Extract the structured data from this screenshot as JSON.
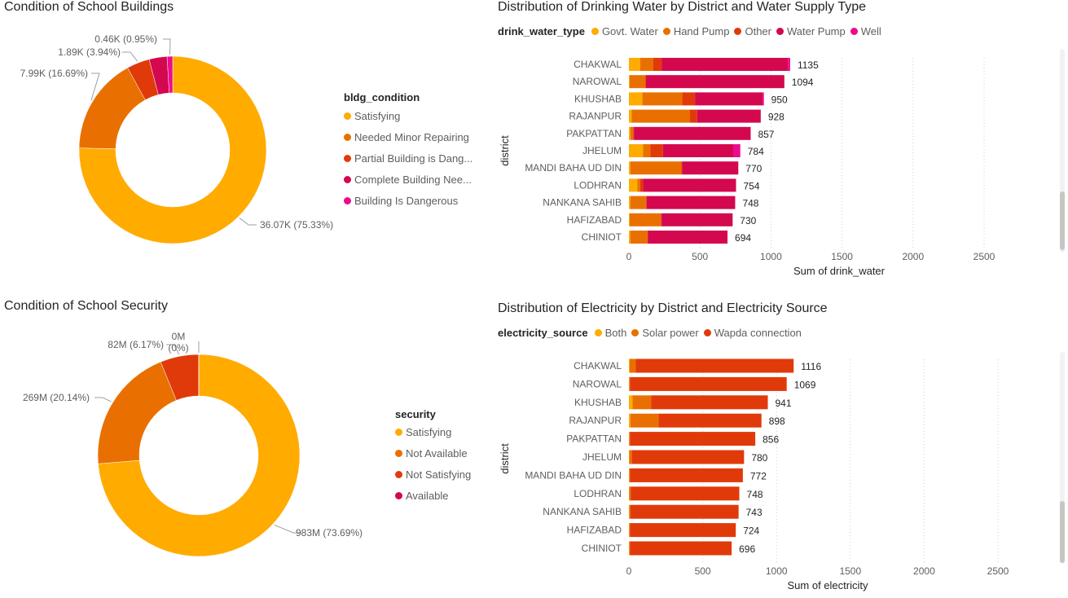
{
  "colors": {
    "orange1": "#FFAB00",
    "orange2": "#E97000",
    "red": "#E13A0A",
    "crimson": "#D3084F",
    "pink": "#EE0A8E",
    "text": "#605e5c",
    "grid": "#d0d0d0"
  },
  "chart_data": [
    {
      "id": "buildings",
      "type": "pie",
      "variant": "donut",
      "title": "Condition of School Buildings",
      "legend_title": "bldg_condition",
      "legend_items": [
        "Satisfying",
        "Needed Minor Repairing",
        "Partial Building is Dang...",
        "Complete Building Nee...",
        "Building Is Dangerous"
      ],
      "slices": [
        {
          "name": "Satisfying",
          "value": 36070,
          "label": "36.07K (75.33%)",
          "color": "#FFAB00"
        },
        {
          "name": "Needed Minor Repairing",
          "value": 7990,
          "label": "7.99K (16.69%)",
          "color": "#E97000"
        },
        {
          "name": "Partial Building is Dangerous",
          "value": 1890,
          "label": "1.89K (3.94%)",
          "color": "#E13A0A"
        },
        {
          "name": "Complete Building Needs Repair",
          "value": 1480,
          "label": "",
          "color": "#D3084F"
        },
        {
          "name": "Building Is Dangerous",
          "value": 460,
          "label": "0.46K (0.95%)",
          "color": "#EE0A8E"
        }
      ]
    },
    {
      "id": "water",
      "type": "bar",
      "orientation": "horizontal",
      "stacked": true,
      "title": "Distribution of Drinking Water by District and Water Supply Type",
      "legend_title": "drink_water_type",
      "legend_placement": "top-left",
      "xlabel": "Sum of drink_water",
      "ylabel": "district",
      "xlim": [
        0,
        2500
      ],
      "xticks": [
        "0",
        "500",
        "1000",
        "1500",
        "2000",
        "2500"
      ],
      "categories": [
        "CHAKWAL",
        "NAROWAL",
        "KHUSHAB",
        "RAJANPUR",
        "PAKPATTAN",
        "JHELUM",
        "MANDI BAHA UD DIN",
        "LODHRAN",
        "NANKANA SAHIB",
        "HAFIZABAD",
        "CHINIOT"
      ],
      "totals": [
        "1135",
        "1094",
        "950",
        "928",
        "857",
        "784",
        "770",
        "754",
        "748",
        "730",
        "694"
      ],
      "series": [
        {
          "name": "Govt. Water",
          "color": "#FFAB00",
          "values": [
            80,
            5,
            95,
            20,
            10,
            100,
            10,
            60,
            10,
            5,
            10
          ]
        },
        {
          "name": "Hand Pump",
          "color": "#E97000",
          "values": [
            90,
            110,
            280,
            410,
            20,
            50,
            360,
            20,
            110,
            220,
            120
          ]
        },
        {
          "name": "Other",
          "color": "#E13A0A",
          "values": [
            60,
            5,
            90,
            50,
            5,
            90,
            5,
            20,
            5,
            5,
            5
          ]
        },
        {
          "name": "Water Pump",
          "color": "#D3084F",
          "values": [
            890,
            974,
            475,
            448,
            822,
            494,
            395,
            654,
            623,
            500,
            559
          ]
        },
        {
          "name": "Well",
          "color": "#EE0A8E",
          "values": [
            15,
            0,
            10,
            0,
            0,
            50,
            0,
            0,
            0,
            0,
            0
          ]
        }
      ]
    },
    {
      "id": "security",
      "type": "pie",
      "variant": "donut",
      "title": "Condition of School Security",
      "legend_title": "security",
      "legend_items": [
        "Satisfying",
        "Not Available",
        "Not Satisfying",
        "Available"
      ],
      "slices": [
        {
          "name": "Satisfying",
          "value": 983,
          "label": "983M (73.69%)",
          "color": "#FFAB00"
        },
        {
          "name": "Not Available",
          "value": 269,
          "label": "269M (20.14%)",
          "color": "#E97000"
        },
        {
          "name": "Not Satisfying",
          "value": 82,
          "label": "82M (6.17%)",
          "color": "#E13A0A"
        },
        {
          "name": "Available",
          "value": 0.2,
          "label": "0M\n(0%)",
          "color": "#D3084F"
        }
      ]
    },
    {
      "id": "electricity",
      "type": "bar",
      "orientation": "horizontal",
      "stacked": true,
      "title": "Distribution of Electricity by District and Electricity Source",
      "legend_title": "electricity_source",
      "legend_placement": "top-left",
      "xlabel": "Sum of electricity",
      "ylabel": "district",
      "xlim": [
        0,
        2500
      ],
      "xticks": [
        "0",
        "500",
        "1000",
        "1500",
        "2000",
        "2500"
      ],
      "categories": [
        "CHAKWAL",
        "NAROWAL",
        "KHUSHAB",
        "RAJANPUR",
        "PAKPATTAN",
        "JHELUM",
        "MANDI BAHA UD DIN",
        "LODHRAN",
        "NANKANA SAHIB",
        "HAFIZABAD",
        "CHINIOT"
      ],
      "totals": [
        "1116",
        "1069",
        "941",
        "898",
        "856",
        "780",
        "772",
        "748",
        "743",
        "724",
        "696"
      ],
      "series": [
        {
          "name": "Both",
          "color": "#FFAB00",
          "values": [
            5,
            2,
            25,
            10,
            2,
            2,
            2,
            2,
            2,
            2,
            2
          ]
        },
        {
          "name": "Solar power",
          "color": "#E97000",
          "values": [
            40,
            5,
            125,
            190,
            5,
            18,
            6,
            10,
            8,
            5,
            5
          ]
        },
        {
          "name": "Wapda connection",
          "color": "#E13A0A",
          "values": [
            1071,
            1062,
            791,
            698,
            849,
            760,
            764,
            736,
            733,
            717,
            689
          ]
        }
      ]
    }
  ]
}
